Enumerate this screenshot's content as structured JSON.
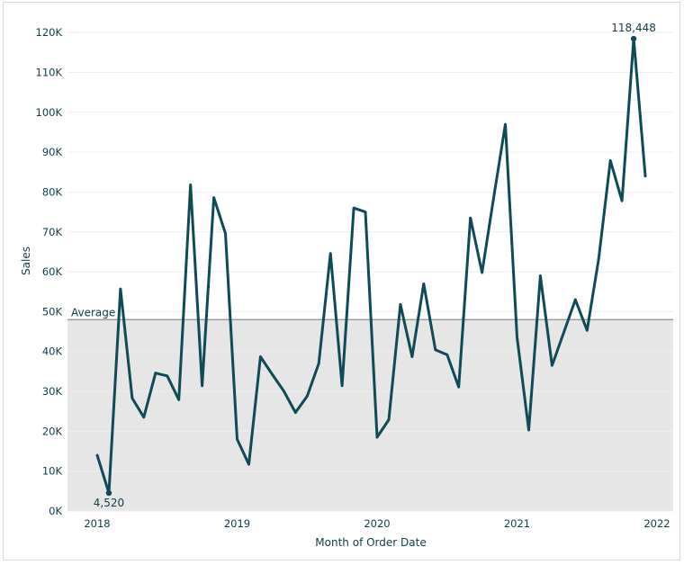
{
  "chart_data": {
    "type": "line",
    "xlabel": "Month of Order Date",
    "ylabel": "Sales",
    "ylim": [
      0,
      125000
    ],
    "y_ticks": [
      0,
      10000,
      20000,
      30000,
      40000,
      50000,
      60000,
      70000,
      80000,
      90000,
      100000,
      110000,
      120000
    ],
    "y_tick_labels": [
      "0K",
      "10K",
      "20K",
      "30K",
      "40K",
      "50K",
      "60K",
      "70K",
      "80K",
      "90K",
      "100K",
      "110K",
      "120K"
    ],
    "x_tick_labels": [
      "2018",
      "2019",
      "2020",
      "2021",
      "2022"
    ],
    "grid": true,
    "line_color": "#0f4a57",
    "band_color": "#e6e6e6",
    "reference_line": {
      "label": "Average",
      "value": 48000
    },
    "series": [
      {
        "x": [
          "2018-01",
          "2018-02",
          "2018-03",
          "2018-04",
          "2018-05",
          "2018-06",
          "2018-07",
          "2018-08",
          "2018-09",
          "2018-10",
          "2018-11",
          "2018-12",
          "2019-01",
          "2019-02",
          "2019-03",
          "2019-04",
          "2019-05",
          "2019-06",
          "2019-07",
          "2019-08",
          "2019-09",
          "2019-10",
          "2019-11",
          "2019-12",
          "2020-01",
          "2020-02",
          "2020-03",
          "2020-04",
          "2020-05",
          "2020-06",
          "2020-07",
          "2020-08",
          "2020-09",
          "2020-10",
          "2020-11",
          "2020-12",
          "2021-01",
          "2021-02",
          "2021-03",
          "2021-04",
          "2021-05",
          "2021-06",
          "2021-07",
          "2021-08",
          "2021-09",
          "2021-10",
          "2021-11",
          "2021-12"
        ],
        "values": [
          14000,
          4520,
          55700,
          28300,
          23500,
          34600,
          33900,
          27900,
          81800,
          31400,
          78600,
          69600,
          18000,
          11700,
          38700,
          34300,
          30100,
          24700,
          28800,
          37000,
          64600,
          31400,
          76000,
          75000,
          18500,
          22900,
          51800,
          38700,
          57000,
          40400,
          39200,
          31100,
          73500,
          59800,
          78700,
          97000,
          43600,
          20300,
          59000,
          36500,
          44700,
          53000,
          45300,
          63200,
          87900,
          77800,
          118448,
          84000
        ]
      }
    ],
    "annotations": [
      {
        "label": "4,520",
        "x": "2018-02",
        "value": 4520
      },
      {
        "label": "118,448",
        "x": "2021-11",
        "value": 118448
      }
    ]
  }
}
